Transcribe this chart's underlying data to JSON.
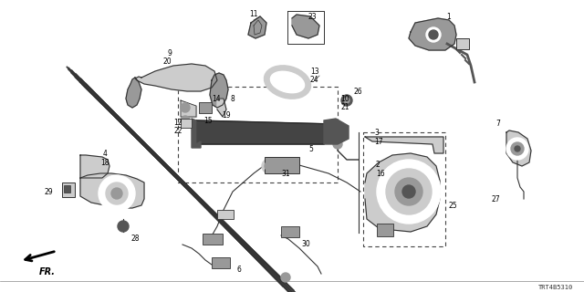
{
  "background_color": "#ffffff",
  "diagram_code": "TRT4B5310",
  "fig_width": 6.4,
  "fig_height": 3.2,
  "dpi": 100,
  "text_color": "#000000",
  "line_color": "#333333",
  "label_fontsize": 5.5
}
